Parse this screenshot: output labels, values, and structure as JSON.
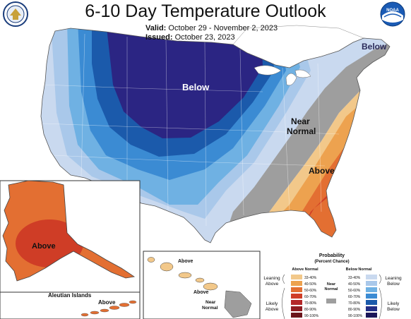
{
  "title": "6-10 Day Temperature Outlook",
  "valid_label": "Valid:",
  "valid_value": "October 29 - November 2, 2023",
  "issued_label": "Issued:",
  "issued_value": "October 23, 2023",
  "logos": {
    "left": "commerce-seal-icon",
    "right": "noaa-logo-icon",
    "noaa_text": "NOAA"
  },
  "regions": {
    "below_north": "Below",
    "below_northeast": "Below",
    "near_normal": "Near\nNormal",
    "near_normal_line1": "Near",
    "near_normal_line2": "Normal",
    "above_southeast": "Above",
    "above_alaska": "Above",
    "aleutian_title": "Aleutian Islands",
    "above_aleutian": "Above",
    "above_hawaii_1": "Above",
    "above_hawaii_2": "Above",
    "hawaii_near_line1": "Near",
    "hawaii_near_line2": "Normal"
  },
  "legend": {
    "title": "Probability",
    "subtitle": "(Percent Chance)",
    "above_header": "Above Normal",
    "below_header": "Below Normal",
    "near_label_1": "Near",
    "near_label_2": "Normal",
    "leaning_above_1": "Leaning",
    "leaning_above_2": "Above",
    "likely_above_1": "Likely",
    "likely_above_2": "Above",
    "leaning_below_1": "Leaning",
    "leaning_below_2": "Below",
    "likely_below_1": "Likely",
    "likely_below_2": "Below",
    "above_ranges": [
      "33-40%",
      "40-50%",
      "50-60%",
      "60-70%",
      "70-80%",
      "80-90%",
      "90-100%"
    ],
    "below_ranges": [
      "33-40%",
      "40-50%",
      "50-60%",
      "60-70%",
      "70-80%",
      "80-90%",
      "90-100%"
    ],
    "above_colors": [
      "#f2c88a",
      "#eda24f",
      "#e36f32",
      "#cf3d26",
      "#b4292a",
      "#8f1d22",
      "#6a141a"
    ],
    "below_colors": [
      "#c9d9ef",
      "#a9c8ea",
      "#6fb1e3",
      "#3b8bd3",
      "#1b5aab",
      "#232e86",
      "#1b1659"
    ],
    "near_color": "#9e9e9e"
  },
  "colors": {
    "below_33_40": "#c9d9ef",
    "below_40_50": "#a9c8ea",
    "below_50_60": "#6fb1e3",
    "below_60_70": "#3b8bd3",
    "below_70_80": "#1b5aab",
    "below_80_90": "#2b2583",
    "near": "#9e9e9e",
    "above_33_40": "#f2c88a",
    "above_40_50": "#eda24f",
    "above_50_60": "#e36f32",
    "above_60_70": "#cf3d26"
  }
}
